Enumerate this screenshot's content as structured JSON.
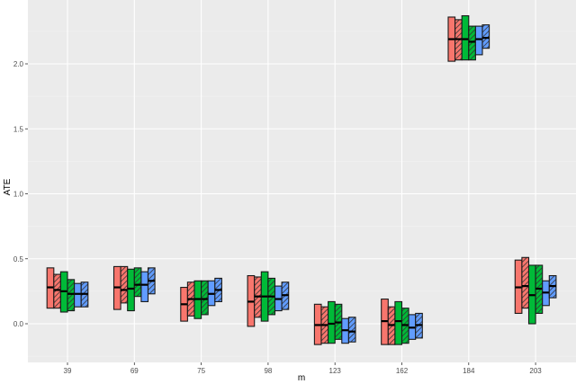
{
  "chart_data": {
    "type": "boxplot",
    "title": "",
    "xlabel": "m",
    "ylabel": "ATE",
    "ylim": [
      -0.28,
      2.49
    ],
    "y_ticks": [
      0.0,
      0.5,
      1.0,
      1.5,
      2.0
    ],
    "y_tick_labels": [
      "0.0",
      "0.5",
      "1.0",
      "1.5",
      "2.0"
    ],
    "grid": true,
    "legend": "none",
    "categories": [
      "39",
      "69",
      "75",
      "98",
      "123",
      "162",
      "184",
      "203"
    ],
    "series_style": [
      {
        "name": "red-solid",
        "color": "#F8766D",
        "hatched": false
      },
      {
        "name": "red-hatched",
        "color": "#F8766D",
        "hatched": true
      },
      {
        "name": "green-solid",
        "color": "#00BA38",
        "hatched": false
      },
      {
        "name": "green-hatched",
        "color": "#00BA38",
        "hatched": true
      },
      {
        "name": "blue-solid",
        "color": "#619CFF",
        "hatched": false
      },
      {
        "name": "blue-hatched",
        "color": "#619CFF",
        "hatched": true
      }
    ],
    "groups": [
      {
        "m": "39",
        "boxes": [
          {
            "upper": 0.43,
            "lower": 0.12,
            "median": 0.28
          },
          {
            "upper": 0.38,
            "lower": 0.12,
            "median": 0.26
          },
          {
            "upper": 0.4,
            "lower": 0.09,
            "median": 0.25
          },
          {
            "upper": 0.34,
            "lower": 0.1,
            "median": 0.23
          },
          {
            "upper": 0.31,
            "lower": 0.13,
            "median": 0.23
          },
          {
            "upper": 0.32,
            "lower": 0.13,
            "median": 0.23
          }
        ]
      },
      {
        "m": "69",
        "boxes": [
          {
            "upper": 0.44,
            "lower": 0.11,
            "median": 0.28
          },
          {
            "upper": 0.44,
            "lower": 0.16,
            "median": 0.26
          },
          {
            "upper": 0.42,
            "lower": 0.1,
            "median": 0.27
          },
          {
            "upper": 0.43,
            "lower": 0.21,
            "median": 0.3
          },
          {
            "upper": 0.4,
            "lower": 0.17,
            "median": 0.3
          },
          {
            "upper": 0.43,
            "lower": 0.23,
            "median": 0.33
          }
        ]
      },
      {
        "m": "75",
        "boxes": [
          {
            "upper": 0.28,
            "lower": 0.02,
            "median": 0.15
          },
          {
            "upper": 0.32,
            "lower": 0.06,
            "median": 0.19
          },
          {
            "upper": 0.33,
            "lower": 0.04,
            "median": 0.19
          },
          {
            "upper": 0.33,
            "lower": 0.07,
            "median": 0.19
          },
          {
            "upper": 0.33,
            "lower": 0.14,
            "median": 0.23
          },
          {
            "upper": 0.35,
            "lower": 0.17,
            "median": 0.26
          }
        ]
      },
      {
        "m": "98",
        "boxes": [
          {
            "upper": 0.37,
            "lower": -0.02,
            "median": 0.17
          },
          {
            "upper": 0.36,
            "lower": 0.05,
            "median": 0.21
          },
          {
            "upper": 0.4,
            "lower": 0.02,
            "median": 0.21
          },
          {
            "upper": 0.35,
            "lower": 0.07,
            "median": 0.21
          },
          {
            "upper": 0.29,
            "lower": 0.1,
            "median": 0.19
          },
          {
            "upper": 0.32,
            "lower": 0.11,
            "median": 0.22
          }
        ]
      },
      {
        "m": "123",
        "boxes": [
          {
            "upper": 0.15,
            "lower": -0.16,
            "median": -0.01
          },
          {
            "upper": 0.13,
            "lower": -0.15,
            "median": -0.01
          },
          {
            "upper": 0.17,
            "lower": -0.15,
            "median": 0.0
          },
          {
            "upper": 0.15,
            "lower": -0.12,
            "median": 0.01
          },
          {
            "upper": 0.04,
            "lower": -0.15,
            "median": -0.05
          },
          {
            "upper": 0.05,
            "lower": -0.14,
            "median": -0.06
          }
        ]
      },
      {
        "m": "162",
        "boxes": [
          {
            "upper": 0.19,
            "lower": -0.16,
            "median": 0.02
          },
          {
            "upper": 0.13,
            "lower": -0.16,
            "median": -0.01
          },
          {
            "upper": 0.17,
            "lower": -0.16,
            "median": 0.02
          },
          {
            "upper": 0.12,
            "lower": -0.15,
            "median": -0.01
          },
          {
            "upper": 0.07,
            "lower": -0.12,
            "median": -0.03
          },
          {
            "upper": 0.08,
            "lower": -0.11,
            "median": -0.01
          }
        ]
      },
      {
        "m": "184",
        "boxes": [
          {
            "upper": 2.36,
            "lower": 2.02,
            "median": 2.19
          },
          {
            "upper": 2.34,
            "lower": 2.03,
            "median": 2.19
          },
          {
            "upper": 2.37,
            "lower": 2.03,
            "median": 2.19
          },
          {
            "upper": 2.29,
            "lower": 2.03,
            "median": 2.17
          },
          {
            "upper": 2.29,
            "lower": 2.07,
            "median": 2.19
          },
          {
            "upper": 2.3,
            "lower": 2.12,
            "median": 2.2
          }
        ]
      },
      {
        "m": "203",
        "boxes": [
          {
            "upper": 0.49,
            "lower": 0.08,
            "median": 0.28
          },
          {
            "upper": 0.51,
            "lower": 0.12,
            "median": 0.29
          },
          {
            "upper": 0.45,
            "lower": 0.0,
            "median": 0.22
          },
          {
            "upper": 0.45,
            "lower": 0.08,
            "median": 0.27
          },
          {
            "upper": 0.33,
            "lower": 0.14,
            "median": 0.24
          },
          {
            "upper": 0.37,
            "lower": 0.2,
            "median": 0.29
          }
        ]
      }
    ]
  },
  "colors": {
    "panel_bg": "#EBEBEB",
    "grid_major": "#FFFFFF",
    "red": "#F8766D",
    "green": "#00BA38",
    "blue": "#619CFF"
  }
}
